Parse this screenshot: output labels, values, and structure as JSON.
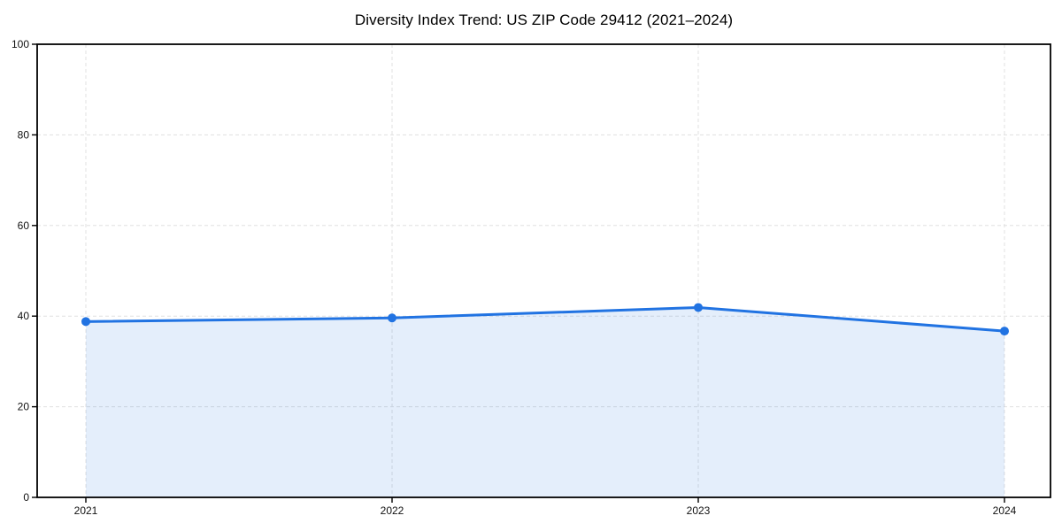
{
  "page": {
    "background": "#ffffff"
  },
  "chart_data": {
    "type": "area",
    "title": "Diversity Index Trend: US ZIP Code 29412 (2021–2024)",
    "series_name": "Diversity Index",
    "categories": [
      "2021",
      "2022",
      "2023",
      "2024"
    ],
    "values": [
      38.8,
      39.6,
      41.9,
      36.7
    ],
    "xlabel": "",
    "ylabel": "",
    "ylim": [
      0,
      100
    ],
    "yticks": [
      0,
      20,
      40,
      60,
      80,
      100
    ],
    "grid": true,
    "grid_style": "dashed",
    "legend_position": "none",
    "line_color": "#2173e2",
    "fill_color": "#2173e2",
    "fill_opacity": 0.12,
    "marker": "circle",
    "grid_color": "#e0e0e0",
    "axis_color": "#000000",
    "text_color": "#111111"
  }
}
